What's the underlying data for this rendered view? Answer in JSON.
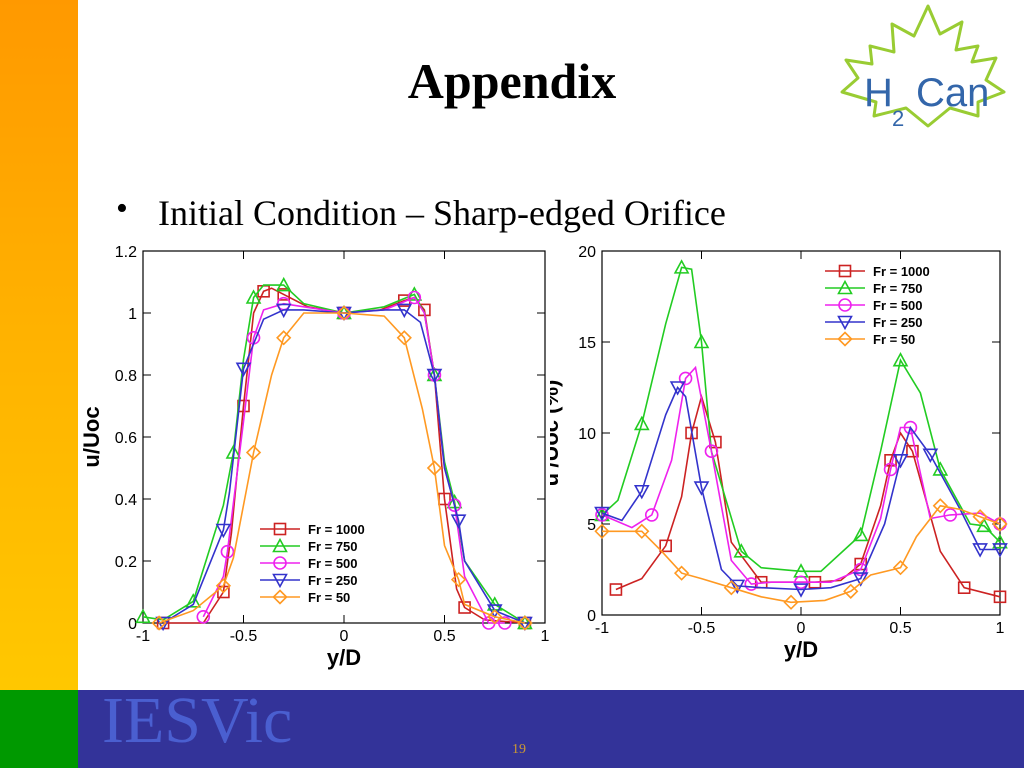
{
  "slide": {
    "title": "Appendix",
    "bullet_marker": "•",
    "bullet": "Initial Condition – Sharp-edged Orifice",
    "footer_logo": "IESVic",
    "page_number": "19",
    "logo_text": "H",
    "logo_subscript": "2",
    "logo_text2": "Can"
  },
  "colors": {
    "left_strip": "#ff9900",
    "bottom_bar": "#333399",
    "Fr1000": "#cc2222",
    "Fr750": "#22cc22",
    "Fr500": "#ee22ee",
    "Fr250": "#3333cc",
    "Fr50": "#ff9922",
    "logo_leaf": "#99cc33",
    "logo_text": "#3366aa"
  },
  "chart_data": [
    {
      "type": "line",
      "xlabel": "y/D",
      "ylabel": "u/Uoc",
      "xlim": [
        -1,
        1
      ],
      "ylim": [
        0,
        1.2
      ],
      "xticks": [
        "-1",
        "-0.5",
        "0",
        "0.5",
        "1"
      ],
      "yticks": [
        "0",
        "0.2",
        "0.4",
        "0.6",
        "0.8",
        "1",
        "1.2"
      ],
      "legend_position": "bottom-center",
      "series": [
        {
          "name": "Fr = 1000",
          "marker": "square",
          "color": "#cc2222",
          "x": [
            -0.9,
            -0.7,
            -0.6,
            -0.56,
            -0.5,
            -0.45,
            -0.4,
            -0.36,
            -0.3,
            -0.18,
            0,
            0.18,
            0.3,
            0.35,
            0.4,
            0.45,
            0.5,
            0.56,
            0.6,
            0.7,
            0.9
          ],
          "y": [
            0,
            0,
            0.1,
            0.29,
            0.7,
            1.0,
            1.07,
            1.08,
            1.06,
            1.02,
            1.0,
            1.01,
            1.04,
            1.05,
            1.01,
            0.8,
            0.4,
            0.11,
            0.05,
            0.01,
            0
          ]
        },
        {
          "name": "Fr = 750",
          "marker": "triangle-up",
          "color": "#22cc22",
          "x": [
            -1,
            -0.9,
            -0.75,
            -0.6,
            -0.55,
            -0.5,
            -0.45,
            -0.4,
            -0.3,
            -0.2,
            0,
            0.2,
            0.35,
            0.4,
            0.45,
            0.5,
            0.55,
            0.6,
            0.75,
            0.9
          ],
          "y": [
            0.02,
            0.01,
            0.07,
            0.38,
            0.55,
            0.85,
            1.05,
            1.09,
            1.09,
            1.03,
            1.0,
            1.02,
            1.06,
            1.0,
            0.8,
            0.52,
            0.39,
            0.2,
            0.06,
            0
          ]
        },
        {
          "name": "Fr = 500",
          "marker": "circle",
          "color": "#ee22ee",
          "x": [
            -0.7,
            -0.6,
            -0.58,
            -0.5,
            -0.45,
            -0.4,
            -0.3,
            -0.2,
            0,
            0.2,
            0.35,
            0.4,
            0.45,
            0.5,
            0.55,
            0.6,
            0.72,
            0.8
          ],
          "y": [
            0.02,
            0.15,
            0.23,
            0.65,
            0.92,
            1.01,
            1.03,
            1.02,
            1.0,
            1.01,
            1.05,
            1.0,
            0.8,
            0.5,
            0.38,
            0.15,
            0.0,
            0.0
          ]
        },
        {
          "name": "Fr = 250",
          "marker": "triangle-down",
          "color": "#3333cc",
          "x": [
            -0.9,
            -0.75,
            -0.6,
            -0.57,
            -0.5,
            -0.4,
            -0.3,
            -0.2,
            0,
            0.2,
            0.3,
            0.38,
            0.45,
            0.5,
            0.57,
            0.6,
            0.75,
            0.9
          ],
          "y": [
            0,
            0.06,
            0.3,
            0.42,
            0.82,
            0.98,
            1.01,
            1.01,
            1.0,
            1.01,
            1.01,
            0.97,
            0.8,
            0.5,
            0.33,
            0.2,
            0.04,
            0
          ]
        },
        {
          "name": "Fr = 50",
          "marker": "diamond",
          "color": "#ff9922",
          "x": [
            -0.92,
            -0.75,
            -0.6,
            -0.55,
            -0.45,
            -0.36,
            -0.3,
            -0.2,
            0,
            0.2,
            0.3,
            0.39,
            0.45,
            0.5,
            0.57,
            0.6,
            0.75,
            0.9
          ],
          "y": [
            0,
            0.04,
            0.12,
            0.21,
            0.55,
            0.8,
            0.92,
            1.0,
            1.0,
            0.99,
            0.92,
            0.69,
            0.5,
            0.25,
            0.14,
            0.06,
            0.02,
            0
          ]
        }
      ]
    },
    {
      "type": "line",
      "xlabel": "y/D",
      "ylabel": "u'/Uoc (%)",
      "xlim": [
        -1,
        1
      ],
      "ylim": [
        0,
        20
      ],
      "xticks": [
        "-1",
        "-0.5",
        "0",
        "0.5",
        "1"
      ],
      "yticks": [
        "0",
        "5",
        "10",
        "15",
        "20"
      ],
      "legend_position": "top-right",
      "series": [
        {
          "name": "Fr = 1000",
          "marker": "square",
          "color": "#cc2222",
          "x": [
            -0.93,
            -0.8,
            -0.68,
            -0.6,
            -0.55,
            -0.5,
            -0.43,
            -0.35,
            -0.2,
            0,
            0.07,
            0.2,
            0.3,
            0.4,
            0.45,
            0.5,
            0.56,
            0.7,
            0.82,
            1.0
          ],
          "y": [
            1.4,
            2.0,
            3.8,
            6.5,
            10.0,
            12.0,
            9.5,
            4.0,
            1.8,
            1.8,
            1.8,
            1.9,
            2.8,
            6.0,
            8.5,
            10.0,
            9.0,
            3.5,
            1.5,
            1.0
          ]
        },
        {
          "name": "Fr = 750",
          "marker": "triangle-up",
          "color": "#22cc22",
          "x": [
            -1,
            -0.92,
            -0.8,
            -0.68,
            -0.6,
            -0.55,
            -0.5,
            -0.45,
            -0.3,
            -0.2,
            0,
            0.1,
            0.3,
            0.4,
            0.5,
            0.6,
            0.7,
            0.85,
            0.92,
            1.0
          ],
          "y": [
            5.5,
            6.3,
            10.5,
            16.0,
            19.1,
            19.0,
            15.0,
            9.0,
            3.5,
            2.6,
            2.4,
            2.4,
            4.4,
            9.0,
            14.0,
            12.2,
            8.0,
            5.0,
            4.9,
            4.0
          ]
        },
        {
          "name": "Fr = 500",
          "marker": "circle",
          "color": "#ee22ee",
          "x": [
            -1,
            -0.85,
            -0.75,
            -0.65,
            -0.58,
            -0.53,
            -0.45,
            -0.35,
            -0.25,
            -0.15,
            0,
            0.15,
            0.3,
            0.4,
            0.45,
            0.5,
            0.55,
            0.65,
            0.75,
            0.9,
            1.0
          ],
          "y": [
            5.5,
            4.8,
            5.5,
            8.5,
            13.0,
            13.6,
            9.0,
            3.0,
            1.7,
            1.8,
            1.8,
            1.8,
            2.5,
            5.3,
            8.0,
            10.3,
            10.3,
            5.3,
            5.5,
            5.6,
            5.0
          ]
        },
        {
          "name": "Fr = 250",
          "marker": "triangle-down",
          "color": "#3333cc",
          "x": [
            -1,
            -0.9,
            -0.8,
            -0.68,
            -0.62,
            -0.58,
            -0.5,
            -0.4,
            -0.32,
            -0.2,
            0,
            0.15,
            0.3,
            0.42,
            0.5,
            0.55,
            0.65,
            0.8,
            0.9,
            1.0
          ],
          "y": [
            5.6,
            5.2,
            6.8,
            11.0,
            12.5,
            12.0,
            7.0,
            2.5,
            1.6,
            1.5,
            1.4,
            1.5,
            2.0,
            5.0,
            8.5,
            10.3,
            8.8,
            5.8,
            3.6,
            3.6
          ]
        },
        {
          "name": "Fr = 50",
          "marker": "diamond",
          "color": "#ff9922",
          "x": [
            -1,
            -0.93,
            -0.8,
            -0.7,
            -0.6,
            -0.5,
            -0.35,
            -0.2,
            -0.05,
            0.12,
            0.25,
            0.35,
            0.5,
            0.58,
            0.7,
            0.8,
            0.9,
            1.0
          ],
          "y": [
            4.6,
            4.6,
            4.6,
            3.5,
            2.3,
            2.0,
            1.5,
            1.0,
            0.7,
            0.8,
            1.3,
            2.2,
            2.6,
            4.3,
            6.0,
            5.8,
            5.4,
            5.0
          ]
        }
      ]
    }
  ]
}
